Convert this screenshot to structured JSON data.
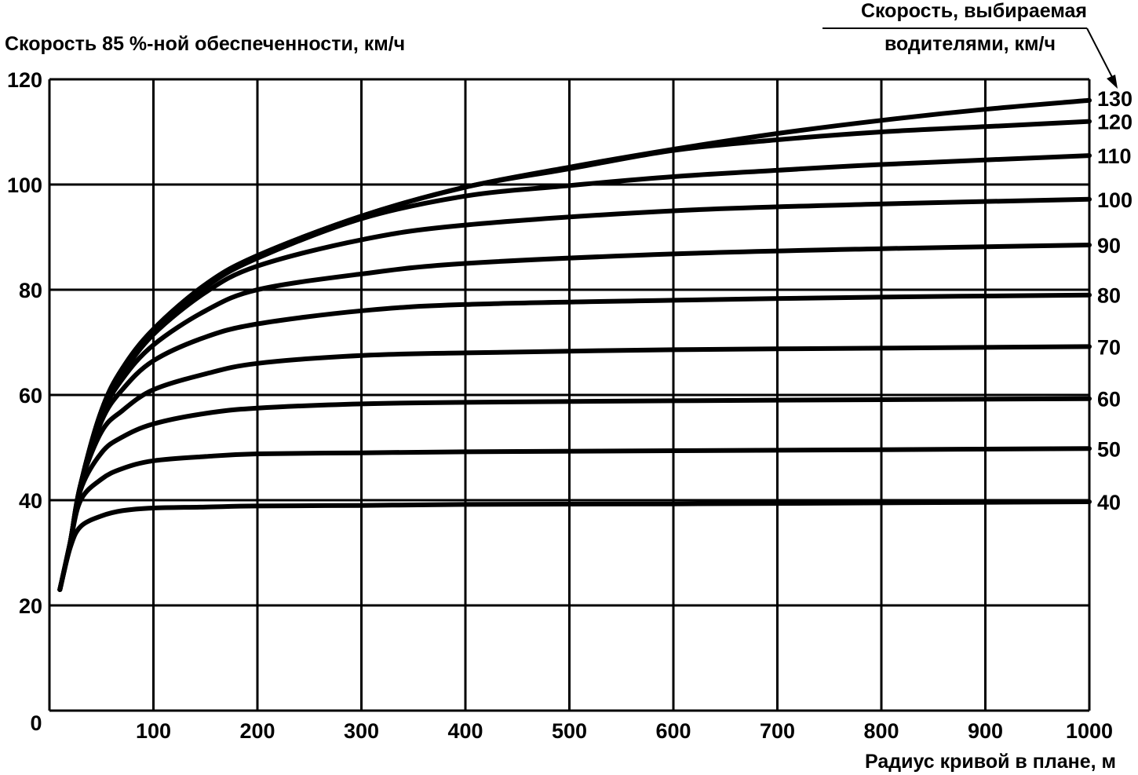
{
  "chart_data": {
    "type": "line",
    "title": "",
    "ylabel": "Скорость 85 %-ной обеспеченности, км/ч",
    "xlabel": "Радиус кривой в плане, м",
    "right_label_line1": "Скорость, выбираемая",
    "right_label_line2": "водителями, км/ч",
    "xlim": [
      0,
      1000
    ],
    "ylim": [
      0,
      120
    ],
    "x_ticks": [
      0,
      100,
      200,
      300,
      400,
      500,
      600,
      700,
      800,
      900,
      1000
    ],
    "y_ticks": [
      20,
      40,
      60,
      80,
      100,
      120
    ],
    "grid": true,
    "series": [
      {
        "name": "40",
        "x": [
          10,
          20,
          30,
          50,
          70,
          100,
          150,
          200,
          300,
          400,
          600,
          800,
          1000
        ],
        "values": [
          23,
          31,
          35,
          37,
          38,
          38.5,
          38.7,
          38.9,
          39,
          39.2,
          39.3,
          39.5,
          39.7
        ]
      },
      {
        "name": "50",
        "x": [
          10,
          20,
          30,
          50,
          70,
          100,
          150,
          200,
          300,
          400,
          600,
          800,
          1000
        ],
        "values": [
          23,
          32,
          40,
          44,
          46,
          47.5,
          48.3,
          48.8,
          49,
          49.2,
          49.4,
          49.6,
          49.8
        ]
      },
      {
        "name": "60",
        "x": [
          10,
          20,
          30,
          50,
          70,
          100,
          150,
          200,
          300,
          400,
          600,
          800,
          1000
        ],
        "values": [
          23,
          32,
          42,
          49,
          52,
          54.5,
          56.5,
          57.5,
          58.3,
          58.6,
          58.9,
          59.1,
          59.3
        ]
      },
      {
        "name": "70",
        "x": [
          10,
          20,
          30,
          50,
          70,
          100,
          150,
          200,
          300,
          400,
          600,
          800,
          1000
        ],
        "values": [
          23,
          32,
          43,
          53,
          57,
          61,
          64,
          66,
          67.5,
          68,
          68.6,
          68.9,
          69.2
        ]
      },
      {
        "name": "80",
        "x": [
          10,
          20,
          30,
          50,
          70,
          100,
          150,
          200,
          300,
          400,
          600,
          800,
          1000
        ],
        "values": [
          23,
          32,
          43,
          55,
          61,
          66.5,
          71,
          73.5,
          76,
          77.2,
          78,
          78.6,
          79
        ]
      },
      {
        "name": "90",
        "x": [
          10,
          20,
          30,
          50,
          70,
          100,
          150,
          200,
          300,
          400,
          600,
          800,
          1000
        ],
        "values": [
          23,
          32,
          43,
          56,
          63,
          69.5,
          76,
          80,
          83,
          85,
          86.8,
          87.8,
          88.5
        ]
      },
      {
        "name": "100",
        "x": [
          10,
          20,
          30,
          50,
          70,
          100,
          150,
          200,
          300,
          400,
          600,
          800,
          1000
        ],
        "values": [
          23,
          32,
          43,
          57,
          64,
          71.5,
          79.5,
          84.5,
          89.5,
          92.3,
          95,
          96.3,
          97.2
        ]
      },
      {
        "name": "110",
        "x": [
          10,
          20,
          30,
          50,
          70,
          100,
          150,
          200,
          300,
          400,
          500,
          600,
          700,
          800,
          1000
        ],
        "values": [
          23,
          32,
          43,
          57,
          65,
          72,
          80.5,
          86,
          93.5,
          97.8,
          99.8,
          101.5,
          102.7,
          103.8,
          105.5
        ]
      },
      {
        "name": "120",
        "x": [
          10,
          20,
          30,
          50,
          70,
          100,
          150,
          200,
          300,
          400,
          500,
          600,
          700,
          800,
          900,
          1000
        ],
        "values": [
          23,
          32,
          43,
          57,
          65,
          72.5,
          81,
          86.5,
          94,
          99.5,
          103,
          106.5,
          108.5,
          110,
          111,
          112
        ]
      },
      {
        "name": "130",
        "x": [
          10,
          20,
          30,
          50,
          70,
          100,
          150,
          200,
          300,
          400,
          500,
          600,
          700,
          800,
          900,
          1000
        ],
        "values": [
          23,
          32,
          43,
          57,
          65,
          72.5,
          81,
          86.5,
          94,
          99.5,
          103.3,
          106.7,
          109.7,
          112.2,
          114.3,
          116
        ]
      }
    ]
  }
}
